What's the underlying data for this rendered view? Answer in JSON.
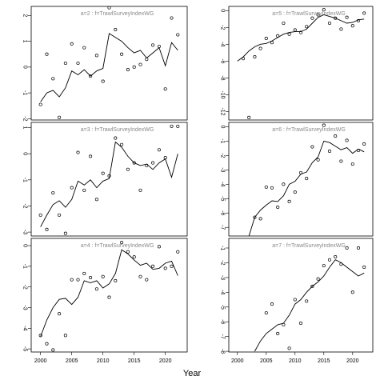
{
  "chart_data": {
    "type": "multi-panel line and scatter",
    "xlabel": "Year",
    "xlim": [
      1998.5,
      2023.5
    ],
    "xticks": [
      2000,
      2005,
      2010,
      2015,
      2020
    ],
    "line_color": "#000000",
    "point_color": "#000000",
    "title_color": "#888888",
    "panels": [
      {
        "title": "a=2 : f=TrawlSurveyIndexWG",
        "ylim": [
          -2.05,
          2.35
        ],
        "yticks": [
          -2,
          -1,
          0,
          1,
          2
        ],
        "fitted": {
          "x": [
            2000,
            2001,
            2002,
            2003,
            2004,
            2005,
            2006,
            2007,
            2008,
            2009,
            2010,
            2011,
            2012,
            2013,
            2014,
            2015,
            2016,
            2017,
            2018,
            2019,
            2020,
            2021,
            2022
          ],
          "y": [
            -1.35,
            -1.0,
            -0.9,
            -1.15,
            -0.8,
            -0.15,
            -0.3,
            -0.1,
            -0.35,
            -0.15,
            -0.05,
            1.3,
            1.15,
            1.0,
            0.75,
            0.55,
            0.65,
            0.35,
            0.55,
            0.75,
            0.05,
            0.95,
            0.65
          ]
        },
        "observed": {
          "x": [
            2000,
            2001,
            2002,
            2003,
            2004,
            2005,
            2006,
            2007,
            2008,
            2009,
            2010,
            2011,
            2012,
            2013,
            2014,
            2015,
            2016,
            2017,
            2018,
            2019,
            2020,
            2021,
            2022
          ],
          "y": [
            -1.45,
            0.5,
            -0.45,
            -1.95,
            0.15,
            0.9,
            0.15,
            0.75,
            -0.35,
            0.45,
            -0.55,
            2.3,
            1.45,
            0.5,
            -0.1,
            0.0,
            0.1,
            0.3,
            0.85,
            0.8,
            -0.85,
            1.9,
            1.25
          ]
        }
      },
      {
        "title": "a=5 : f=TrawlSurveyIndexWG",
        "ylim": [
          -13,
          0.5
        ],
        "yticks": [
          -12,
          -10,
          -8,
          -6,
          -4,
          -2,
          0
        ],
        "fitted": {
          "x": [
            2000,
            2001,
            2002,
            2003,
            2004,
            2005,
            2006,
            2007,
            2008,
            2009,
            2010,
            2011,
            2012,
            2013,
            2014,
            2015,
            2016,
            2017,
            2018,
            2019,
            2020,
            2021,
            2022
          ],
          "y": [
            -6.0,
            -5.5,
            -4.8,
            -4.3,
            -4.0,
            -3.9,
            -3.6,
            -3.2,
            -2.8,
            -2.6,
            -2.5,
            -2.5,
            -2.2,
            -1.5,
            -0.8,
            -0.5,
            -0.7,
            -0.9,
            -1.2,
            -1.5,
            -1.4,
            -1.1,
            -1.0
          ]
        },
        "observed": {
          "x": [
            2001,
            2002,
            2003,
            2004,
            2005,
            2006,
            2007,
            2008,
            2009,
            2010,
            2011,
            2012,
            2013,
            2014,
            2015,
            2016,
            2017,
            2018,
            2019,
            2020,
            2021,
            2022
          ],
          "y": [
            -5.7,
            -12.7,
            -5.5,
            -4.5,
            -3.3,
            -3.8,
            -3.0,
            -1.5,
            -2.8,
            -2.3,
            -2.6,
            -1.9,
            -0.9,
            -0.5,
            0.1,
            -1.5,
            -0.9,
            -2.2,
            -0.8,
            -1.8,
            -1.2,
            -0.3
          ]
        }
      },
      {
        "title": "a=3 : f=TrawlSurveyIndexWG",
        "ylim": [
          -3.15,
          1.2
        ],
        "yticks": [
          -3,
          -2,
          -1,
          0,
          1
        ],
        "fitted": {
          "x": [
            2000,
            2001,
            2002,
            2003,
            2004,
            2005,
            2006,
            2007,
            2008,
            2009,
            2010,
            2011,
            2012,
            2013,
            2014,
            2015,
            2016,
            2017,
            2018,
            2019,
            2020,
            2021,
            2022
          ],
          "y": [
            -2.8,
            -2.35,
            -1.95,
            -1.8,
            -2.05,
            -1.75,
            -1.05,
            -1.2,
            -1.0,
            -1.3,
            -1.05,
            -0.95,
            0.45,
            0.25,
            -0.1,
            -0.35,
            -0.45,
            -0.4,
            -0.6,
            -0.35,
            -0.2,
            -0.9,
            0.0
          ]
        },
        "observed": {
          "x": [
            2000,
            2001,
            2002,
            2003,
            2004,
            2005,
            2006,
            2007,
            2008,
            2009,
            2010,
            2011,
            2012,
            2013,
            2014,
            2015,
            2016,
            2017,
            2018,
            2019,
            2020,
            2021,
            2022
          ],
          "y": [
            -2.35,
            -2.9,
            -1.5,
            -2.35,
            -3.05,
            -1.3,
            0.05,
            -1.4,
            -0.1,
            -1.75,
            -0.75,
            -0.85,
            0.6,
            0.35,
            -0.6,
            -0.35,
            -1.4,
            -0.45,
            -0.35,
            0.15,
            -0.15,
            1.05,
            1.05
          ]
        }
      },
      {
        "title": "a=6 : f=TrawlSurveyIndexWG",
        "ylim": [
          -7.6,
          0.3
        ],
        "yticks": [
          -7,
          -6,
          -5,
          -4,
          -3,
          -2,
          -1,
          0
        ],
        "fitted": {
          "x": [
            2002,
            2003,
            2004,
            2005,
            2006,
            2007,
            2008,
            2009,
            2010,
            2011,
            2012,
            2013,
            2014,
            2015,
            2016,
            2017,
            2018,
            2019,
            2020,
            2021,
            2022
          ],
          "y": [
            -7.6,
            -6.3,
            -5.8,
            -5.45,
            -5.15,
            -5.2,
            -4.8,
            -4.0,
            -3.8,
            -3.3,
            -3.15,
            -2.5,
            -2.1,
            -1.0,
            -1.1,
            -1.35,
            -1.6,
            -1.45,
            -1.85,
            -1.55,
            -1.75
          ]
        },
        "observed": {
          "x": [
            2003,
            2004,
            2005,
            2006,
            2007,
            2008,
            2009,
            2010,
            2011,
            2012,
            2013,
            2014,
            2015,
            2016,
            2017,
            2018,
            2019,
            2020,
            2021,
            2022
          ],
          "y": [
            -6.3,
            -6.4,
            -4.2,
            -4.25,
            -5.6,
            -4.0,
            -5.2,
            -4.55,
            -3.2,
            -3.6,
            -1.4,
            -2.3,
            0.1,
            -1.7,
            -0.65,
            -2.4,
            -0.95,
            -2.6,
            -1.65,
            -1.2
          ]
        }
      },
      {
        "title": "a=4 : f=TrawlSurveyIndexWG",
        "ylim": [
          -5.15,
          0.35
        ],
        "yticks": [
          -5,
          -4,
          -3,
          -2,
          -1,
          0
        ],
        "fitted": {
          "x": [
            2000,
            2001,
            2002,
            2003,
            2004,
            2005,
            2006,
            2007,
            2008,
            2009,
            2010,
            2011,
            2012,
            2013,
            2014,
            2015,
            2016,
            2017,
            2018,
            2019,
            2020,
            2021,
            2022
          ],
          "y": [
            -4.4,
            -3.6,
            -3.0,
            -2.6,
            -2.55,
            -2.85,
            -2.5,
            -1.7,
            -1.8,
            -1.7,
            -2.05,
            -1.85,
            -1.35,
            -0.2,
            -0.4,
            -0.7,
            -0.95,
            -0.85,
            -1.15,
            -1.1,
            -0.85,
            -0.75,
            -1.45
          ]
        },
        "observed": {
          "x": [
            2000,
            2001,
            2002,
            2003,
            2004,
            2005,
            2006,
            2007,
            2008,
            2009,
            2010,
            2011,
            2012,
            2013,
            2014,
            2015,
            2016,
            2017,
            2018,
            2019,
            2020,
            2021,
            2022
          ],
          "y": [
            -4.35,
            -4.75,
            -5.05,
            -3.3,
            -4.35,
            -1.65,
            -1.65,
            -1.35,
            -1.55,
            -2.1,
            -1.5,
            -2.5,
            -1.7,
            0.15,
            -0.3,
            -0.55,
            -1.5,
            -1.65,
            -1.0,
            -0.05,
            -1.1,
            -1.0,
            -0.3
          ]
        }
      },
      {
        "title": "a=7 : f=TrawlSurveyIndexWG",
        "ylim": [
          -8.05,
          -0.35
        ],
        "yticks": [
          -8,
          -7,
          -6,
          -5,
          -4,
          -3,
          -2,
          -1
        ],
        "fitted": {
          "x": [
            2003,
            2004,
            2005,
            2006,
            2007,
            2008,
            2009,
            2010,
            2011,
            2012,
            2013,
            2014,
            2015,
            2016,
            2017,
            2018,
            2019,
            2020,
            2021,
            2022
          ],
          "y": [
            -8.0,
            -7.3,
            -6.8,
            -6.5,
            -6.2,
            -6.1,
            -5.55,
            -4.8,
            -4.5,
            -4.0,
            -3.6,
            -3.3,
            -2.9,
            -2.3,
            -1.8,
            -2.0,
            -2.3,
            -2.6,
            -2.9,
            -2.7
          ]
        },
        "observed": {
          "x": [
            2005,
            2006,
            2007,
            2008,
            2009,
            2010,
            2011,
            2012,
            2013,
            2014,
            2015,
            2016,
            2017,
            2018,
            2019,
            2020,
            2021,
            2022
          ],
          "y": [
            -5.4,
            -4.8,
            -6.8,
            -6.2,
            -7.8,
            -4.5,
            -6.1,
            -4.6,
            -3.6,
            -3.1,
            -2.2,
            -1.8,
            -1.6,
            -2.1,
            -1.0,
            -4.0,
            -1.0,
            -2.3
          ]
        }
      }
    ]
  }
}
